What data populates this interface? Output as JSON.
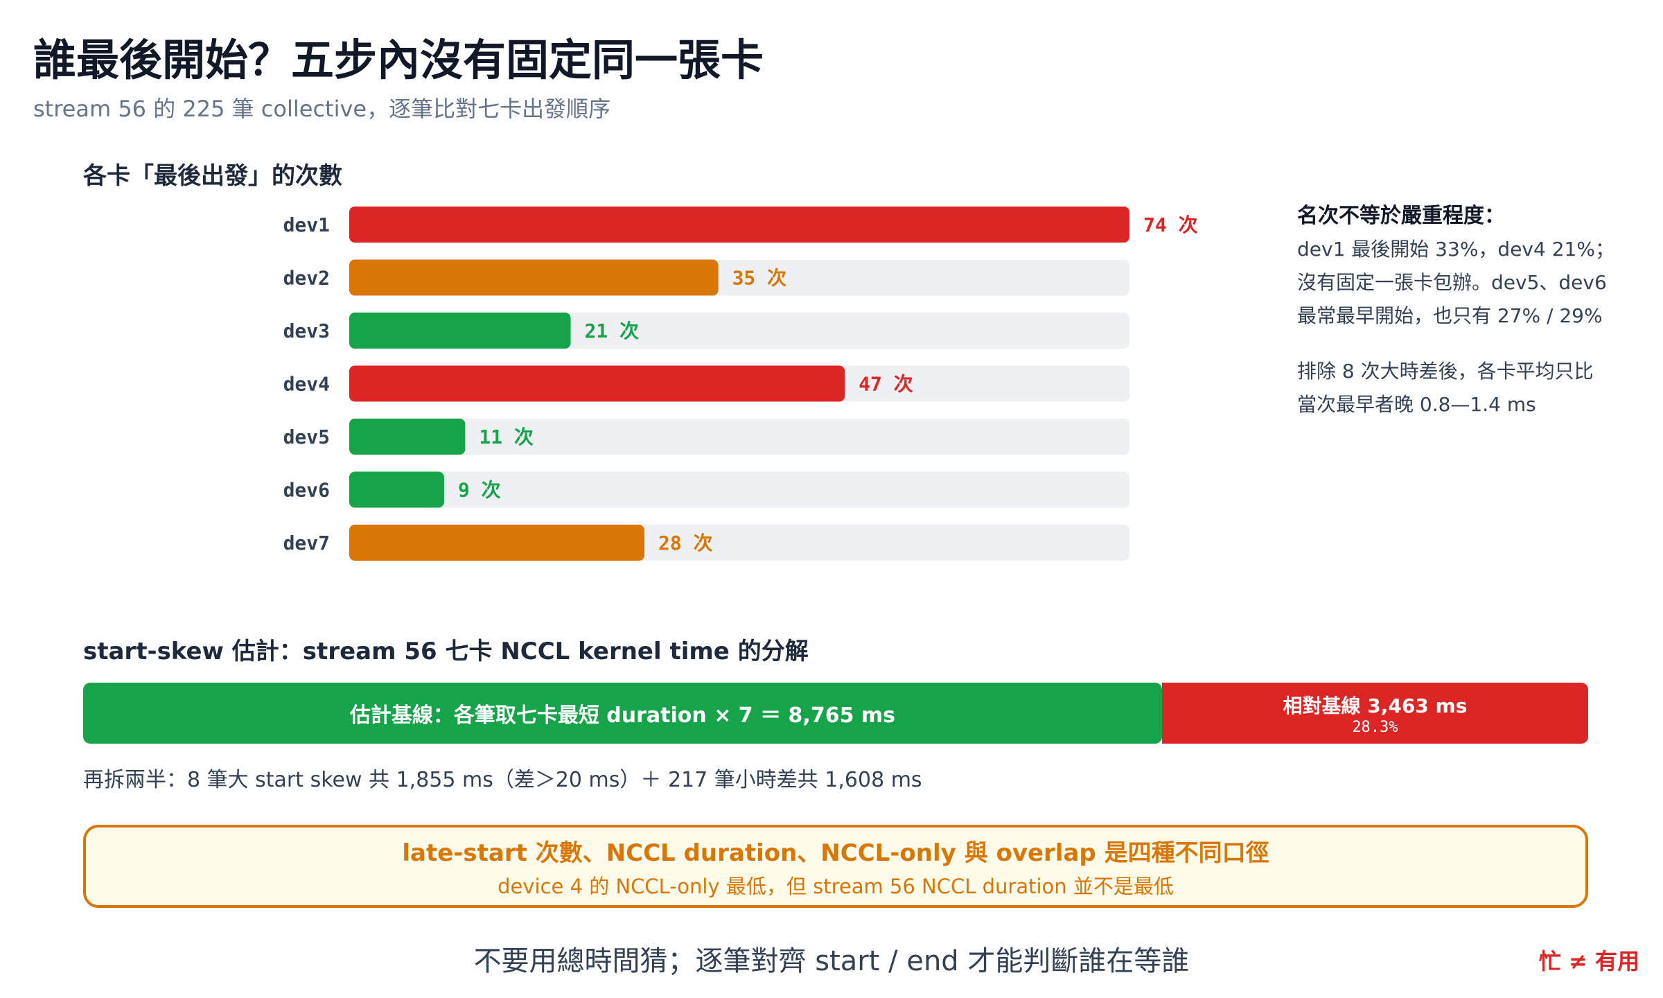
{
  "title": "誰最後開始？五步內沒有固定同一張卡",
  "subtitle": "stream 56 的 225 筆 collective，逐筆比對七卡出發順序",
  "chart_data": [
    {
      "type": "bar",
      "orientation": "horizontal",
      "title": "各卡「最後出發」的次數",
      "categories": [
        "dev1",
        "dev2",
        "dev3",
        "dev4",
        "dev5",
        "dev6",
        "dev7"
      ],
      "values": [
        74,
        35,
        21,
        47,
        11,
        9,
        28
      ],
      "value_suffix": " 次",
      "xlim": [
        0,
        74
      ],
      "colors": [
        "#dc2626",
        "#d97706",
        "#16a34a",
        "#dc2626",
        "#16a34a",
        "#16a34a",
        "#d97706"
      ],
      "track_color": "#eef0f4",
      "grid": false,
      "legend": "none"
    },
    {
      "type": "bar",
      "orientation": "stacked-horizontal",
      "title": "start-skew 估計：stream 56 七卡 NCCL kernel time 的分解",
      "segments": [
        {
          "label": "估計基線：各筆取七卡最短 duration × 7 ＝ 8,765 ms",
          "value": 8765,
          "color": "#16a34a"
        },
        {
          "label": "相對基線 3,463 ms",
          "value": 3463,
          "pct_label": "28.3%",
          "color": "#dc2626"
        }
      ]
    }
  ],
  "notes": {
    "heading": "名次不等於嚴重程度：",
    "lines": [
      "dev1 最後開始 33%，dev4 21%；",
      "沒有固定一張卡包辦。dev5、dev6",
      "最常最早開始，也只有 27% / 29%"
    ],
    "lines2": [
      "排除 8 次大時差後，各卡平均只比",
      "當次最早者晚 0.8—1.4 ms"
    ]
  },
  "split_text": "再拆兩半：8 筆大 start skew 共 1,855 ms（差＞20 ms）＋ 217 筆小時差共 1,608 ms",
  "callout": {
    "title": "late-start 次數、NCCL duration、NCCL-only 與 overlap 是四種不同口徑",
    "subtitle": "device 4 的 NCCL-only 最低，但 stream 56 NCCL duration 並不是最低"
  },
  "footer": {
    "text": "不要用總時間猜；逐筆對齊 start / end 才能判斷誰在等誰",
    "tag": "忙 ≠ 有用"
  }
}
